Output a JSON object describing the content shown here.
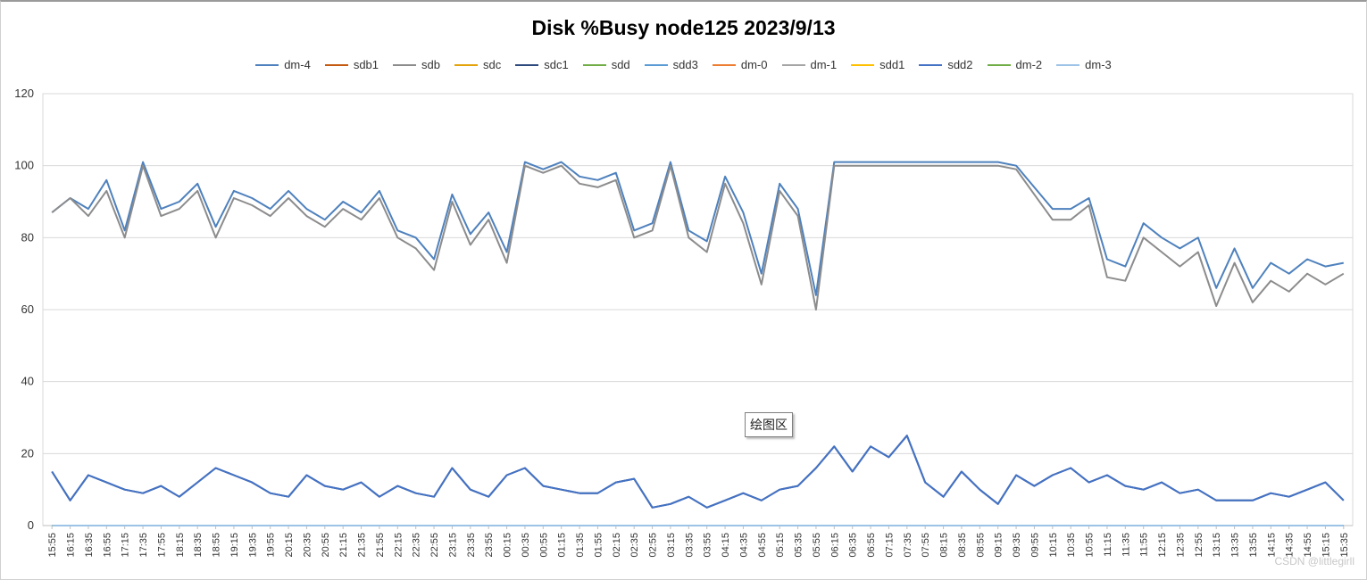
{
  "chart_data": {
    "type": "line",
    "title": "Disk %Busy node125  2023/9/13",
    "xlabel": "",
    "ylabel": "",
    "ylim": [
      0,
      120
    ],
    "yticks": [
      0,
      20,
      40,
      60,
      80,
      100,
      120
    ],
    "grid": true,
    "legend_position": "top",
    "x": [
      "15:55",
      "16:15",
      "16:35",
      "16:55",
      "17:15",
      "17:35",
      "17:55",
      "18:15",
      "18:35",
      "18:55",
      "19:15",
      "19:35",
      "19:55",
      "20:15",
      "20:35",
      "20:55",
      "21:15",
      "21:35",
      "21:55",
      "22:15",
      "22:35",
      "22:55",
      "23:15",
      "23:35",
      "23:55",
      "00:15",
      "00:35",
      "00:55",
      "01:15",
      "01:35",
      "01:55",
      "02:15",
      "02:35",
      "02:55",
      "03:15",
      "03:35",
      "03:55",
      "04:15",
      "04:35",
      "04:55",
      "05:15",
      "05:35",
      "05:55",
      "06:15",
      "06:35",
      "06:55",
      "07:15",
      "07:35",
      "07:55",
      "08:15",
      "08:35",
      "08:55",
      "09:15",
      "09:35",
      "09:55",
      "10:15",
      "10:35",
      "10:55",
      "11:15",
      "11:35",
      "11:55",
      "12:15",
      "12:35",
      "12:55",
      "13:15",
      "13:35",
      "13:55",
      "14:15",
      "14:35",
      "14:55",
      "15:15",
      "15:35"
    ],
    "series": [
      {
        "name": "dm-4",
        "color": "#4e81bd",
        "values": [
          87,
          91,
          88,
          96,
          82,
          101,
          88,
          90,
          95,
          83,
          93,
          91,
          88,
          93,
          88,
          85,
          90,
          87,
          93,
          82,
          80,
          74,
          92,
          81,
          87,
          76,
          101,
          99,
          101,
          97,
          96,
          98,
          82,
          84,
          101,
          82,
          79,
          97,
          87,
          70,
          95,
          88,
          64,
          101,
          101,
          101,
          101,
          101,
          101,
          101,
          101,
          101,
          101,
          100,
          94,
          88,
          88,
          91,
          74,
          72,
          84,
          80,
          77,
          80,
          66,
          77,
          66,
          73,
          70,
          74,
          72,
          73
        ]
      },
      {
        "name": "sdb1",
        "color": "#c55a11",
        "values": [
          0,
          0,
          0,
          0,
          0,
          0,
          0,
          0,
          0,
          0,
          0,
          0,
          0,
          0,
          0,
          0,
          0,
          0,
          0,
          0,
          0,
          0,
          0,
          0,
          0,
          0,
          0,
          0,
          0,
          0,
          0,
          0,
          0,
          0,
          0,
          0,
          0,
          0,
          0,
          0,
          0,
          0,
          0,
          0,
          0,
          0,
          0,
          0,
          0,
          0,
          0,
          0,
          0,
          0,
          0,
          0,
          0,
          0,
          0,
          0,
          0,
          0,
          0,
          0,
          0,
          0,
          0,
          0,
          0,
          0,
          0,
          0
        ]
      },
      {
        "name": "sdb",
        "color": "#8c8c8c",
        "values": [
          87,
          91,
          86,
          93,
          80,
          100,
          86,
          88,
          93,
          80,
          91,
          89,
          86,
          91,
          86,
          83,
          88,
          85,
          91,
          80,
          77,
          71,
          90,
          78,
          85,
          73,
          100,
          98,
          100,
          95,
          94,
          96,
          80,
          82,
          100,
          80,
          76,
          95,
          84,
          67,
          93,
          86,
          60,
          100,
          100,
          100,
          100,
          100,
          100,
          100,
          100,
          100,
          100,
          99,
          92,
          85,
          85,
          89,
          69,
          68,
          80,
          76,
          72,
          76,
          61,
          73,
          62,
          68,
          65,
          70,
          67,
          70
        ]
      },
      {
        "name": "sdc",
        "color": "#e3a30b",
        "values": [
          0,
          0,
          0,
          0,
          0,
          0,
          0,
          0,
          0,
          0,
          0,
          0,
          0,
          0,
          0,
          0,
          0,
          0,
          0,
          0,
          0,
          0,
          0,
          0,
          0,
          0,
          0,
          0,
          0,
          0,
          0,
          0,
          0,
          0,
          0,
          0,
          0,
          0,
          0,
          0,
          0,
          0,
          0,
          0,
          0,
          0,
          0,
          0,
          0,
          0,
          0,
          0,
          0,
          0,
          0,
          0,
          0,
          0,
          0,
          0,
          0,
          0,
          0,
          0,
          0,
          0,
          0,
          0,
          0,
          0,
          0,
          0
        ]
      },
      {
        "name": "sdc1",
        "color": "#2e4a7d",
        "values": [
          15,
          7,
          14,
          12,
          10,
          9,
          11,
          8,
          12,
          16,
          14,
          12,
          9,
          8,
          14,
          11,
          10,
          12,
          8,
          11,
          9,
          8,
          16,
          10,
          8,
          14,
          16,
          11,
          10,
          9,
          9,
          12,
          13,
          5,
          6,
          8,
          5,
          7,
          9,
          7,
          10,
          11,
          16,
          22,
          15,
          22,
          19,
          25,
          12,
          8,
          15,
          10,
          6,
          14,
          11,
          14,
          16,
          12,
          14,
          11,
          10,
          12,
          9,
          10,
          7,
          7,
          7,
          9,
          8,
          10,
          12,
          7
        ]
      },
      {
        "name": "sdd",
        "color": "#70ad47",
        "values": [
          0,
          0,
          0,
          0,
          0,
          0,
          0,
          0,
          0,
          0,
          0,
          0,
          0,
          0,
          0,
          0,
          0,
          0,
          0,
          0,
          0,
          0,
          0,
          0,
          0,
          0,
          0,
          0,
          0,
          0,
          0,
          0,
          0,
          0,
          0,
          0,
          0,
          0,
          0,
          0,
          0,
          0,
          0,
          0,
          0,
          0,
          0,
          0,
          0,
          0,
          0,
          0,
          0,
          0,
          0,
          0,
          0,
          0,
          0,
          0,
          0,
          0,
          0,
          0,
          0,
          0,
          0,
          0,
          0,
          0,
          0,
          0
        ]
      },
      {
        "name": "sdd3",
        "color": "#5b9bd5",
        "values": [
          0,
          0,
          0,
          0,
          0,
          0,
          0,
          0,
          0,
          0,
          0,
          0,
          0,
          0,
          0,
          0,
          0,
          0,
          0,
          0,
          0,
          0,
          0,
          0,
          0,
          0,
          0,
          0,
          0,
          0,
          0,
          0,
          0,
          0,
          0,
          0,
          0,
          0,
          0,
          0,
          0,
          0,
          0,
          0,
          0,
          0,
          0,
          0,
          0,
          0,
          0,
          0,
          0,
          0,
          0,
          0,
          0,
          0,
          0,
          0,
          0,
          0,
          0,
          0,
          0,
          0,
          0,
          0,
          0,
          0,
          0,
          0
        ]
      },
      {
        "name": "dm-0",
        "color": "#ed7d31",
        "values": [
          0,
          0,
          0,
          0,
          0,
          0,
          0,
          0,
          0,
          0,
          0,
          0,
          0,
          0,
          0,
          0,
          0,
          0,
          0,
          0,
          0,
          0,
          0,
          0,
          0,
          0,
          0,
          0,
          0,
          0,
          0,
          0,
          0,
          0,
          0,
          0,
          0,
          0,
          0,
          0,
          0,
          0,
          0,
          0,
          0,
          0,
          0,
          0,
          0,
          0,
          0,
          0,
          0,
          0,
          0,
          0,
          0,
          0,
          0,
          0,
          0,
          0,
          0,
          0,
          0,
          0,
          0,
          0,
          0,
          0,
          0,
          0
        ]
      },
      {
        "name": "dm-1",
        "color": "#a5a5a5",
        "values": [
          0,
          0,
          0,
          0,
          0,
          0,
          0,
          0,
          0,
          0,
          0,
          0,
          0,
          0,
          0,
          0,
          0,
          0,
          0,
          0,
          0,
          0,
          0,
          0,
          0,
          0,
          0,
          0,
          0,
          0,
          0,
          0,
          0,
          0,
          0,
          0,
          0,
          0,
          0,
          0,
          0,
          0,
          0,
          0,
          0,
          0,
          0,
          0,
          0,
          0,
          0,
          0,
          0,
          0,
          0,
          0,
          0,
          0,
          0,
          0,
          0,
          0,
          0,
          0,
          0,
          0,
          0,
          0,
          0,
          0,
          0,
          0
        ]
      },
      {
        "name": "sdd1",
        "color": "#ffc000",
        "values": [
          0,
          0,
          0,
          0,
          0,
          0,
          0,
          0,
          0,
          0,
          0,
          0,
          0,
          0,
          0,
          0,
          0,
          0,
          0,
          0,
          0,
          0,
          0,
          0,
          0,
          0,
          0,
          0,
          0,
          0,
          0,
          0,
          0,
          0,
          0,
          0,
          0,
          0,
          0,
          0,
          0,
          0,
          0,
          0,
          0,
          0,
          0,
          0,
          0,
          0,
          0,
          0,
          0,
          0,
          0,
          0,
          0,
          0,
          0,
          0,
          0,
          0,
          0,
          0,
          0,
          0,
          0,
          0,
          0,
          0,
          0,
          0
        ]
      },
      {
        "name": "sdd2",
        "color": "#4472c4",
        "values": [
          15,
          7,
          14,
          12,
          10,
          9,
          11,
          8,
          12,
          16,
          14,
          12,
          9,
          8,
          14,
          11,
          10,
          12,
          8,
          11,
          9,
          8,
          16,
          10,
          8,
          14,
          16,
          11,
          10,
          9,
          9,
          12,
          13,
          5,
          6,
          8,
          5,
          7,
          9,
          7,
          10,
          11,
          16,
          22,
          15,
          22,
          19,
          25,
          12,
          8,
          15,
          10,
          6,
          14,
          11,
          14,
          16,
          12,
          14,
          11,
          10,
          12,
          9,
          10,
          7,
          7,
          7,
          9,
          8,
          10,
          12,
          7
        ]
      },
      {
        "name": "dm-2",
        "color": "#70ad47",
        "values": [
          0,
          0,
          0,
          0,
          0,
          0,
          0,
          0,
          0,
          0,
          0,
          0,
          0,
          0,
          0,
          0,
          0,
          0,
          0,
          0,
          0,
          0,
          0,
          0,
          0,
          0,
          0,
          0,
          0,
          0,
          0,
          0,
          0,
          0,
          0,
          0,
          0,
          0,
          0,
          0,
          0,
          0,
          0,
          0,
          0,
          0,
          0,
          0,
          0,
          0,
          0,
          0,
          0,
          0,
          0,
          0,
          0,
          0,
          0,
          0,
          0,
          0,
          0,
          0,
          0,
          0,
          0,
          0,
          0,
          0,
          0,
          0
        ]
      },
      {
        "name": "dm-3",
        "color": "#9dc3e6",
        "values": [
          0,
          0,
          0,
          0,
          0,
          0,
          0,
          0,
          0,
          0,
          0,
          0,
          0,
          0,
          0,
          0,
          0,
          0,
          0,
          0,
          0,
          0,
          0,
          0,
          0,
          0,
          0,
          0,
          0,
          0,
          0,
          0,
          0,
          0,
          0,
          0,
          0,
          0,
          0,
          0,
          0,
          0,
          0,
          0,
          0,
          0,
          0,
          0,
          0,
          0,
          0,
          0,
          0,
          0,
          0,
          0,
          0,
          0,
          0,
          0,
          0,
          0,
          0,
          0,
          0,
          0,
          0,
          0,
          0,
          0,
          0,
          0
        ]
      }
    ]
  },
  "tooltip": {
    "label": "绘图区"
  },
  "watermark": {
    "text": "CSDN @littlegirll"
  }
}
